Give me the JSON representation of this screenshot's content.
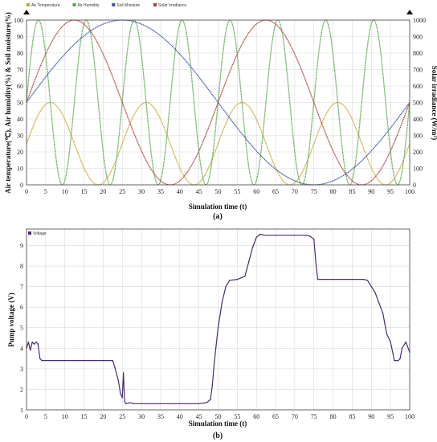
{
  "charts": [
    {
      "id": "a",
      "type": "line",
      "caption": "(a)",
      "xlabel": "Simulation time (t)",
      "ylabel_left": "Air temperature(℃), Air humidity(%) & Soil moisture(%)",
      "ylabel_right": "Solar irradiance (W/m²)",
      "xlim": [
        0,
        100
      ],
      "ylim_left": [
        0,
        100
      ],
      "ylim_right": [
        0,
        1000
      ],
      "xticks": [
        "0",
        "5",
        "10",
        "15",
        "20",
        "25",
        "30",
        "35",
        "40",
        "45",
        "50",
        "55",
        "60",
        "65",
        "70",
        "75",
        "80",
        "85",
        "90",
        "95",
        "100"
      ],
      "yticks_left": [
        "0",
        "10",
        "20",
        "30",
        "40",
        "50",
        "60",
        "70",
        "80",
        "90",
        "100"
      ],
      "yticks_right": [
        "0",
        "100",
        "200",
        "300",
        "400",
        "500",
        "600",
        "700",
        "800",
        "900",
        "1000"
      ],
      "grid": true,
      "legend_position": "top-left",
      "series": [
        {
          "name": "Air Temperature",
          "color": "#c8a52a",
          "axis": "left",
          "model": "sine",
          "amplitude": 25,
          "offset": 25,
          "period": 25,
          "peak_at": 6.25
        },
        {
          "name": "Air Humidity",
          "color": "#57a84a",
          "axis": "left",
          "model": "sine",
          "amplitude": 50,
          "offset": 50,
          "period": 12.5,
          "peak_at": 3.1
        },
        {
          "name": "Soil Moisture",
          "color": "#3a57a3",
          "axis": "left",
          "model": "sine",
          "amplitude": 50,
          "offset": 50,
          "period": 100,
          "peak_at": 25
        },
        {
          "name": "Solar Irradiance",
          "color": "#a8423c",
          "axis": "right",
          "model": "sine",
          "amplitude": 500,
          "offset": 500,
          "period": 50,
          "peak_at": 12.5
        }
      ]
    },
    {
      "id": "b",
      "type": "line",
      "caption": "(b)",
      "xlabel": "Simulation time (t)",
      "ylabel": "Pump voltage (V)",
      "xlim": [
        0,
        100
      ],
      "ylim": [
        1,
        9.8
      ],
      "xticks": [
        "0",
        "5",
        "10",
        "15",
        "20",
        "25",
        "30",
        "35",
        "40",
        "45",
        "50",
        "55",
        "60",
        "65",
        "70",
        "75",
        "80",
        "85",
        "90",
        "95",
        "100"
      ],
      "yticks": [
        "1",
        "2",
        "3",
        "4",
        "5",
        "6",
        "7",
        "8",
        "9"
      ],
      "grid": true,
      "legend_position": "top-left",
      "series": [
        {
          "name": "Voltage",
          "color": "#4b2c6e",
          "x": [
            0,
            0.5,
            1,
            1.5,
            2,
            2.5,
            3,
            3.5,
            4,
            10,
            15,
            20,
            22.5,
            23,
            24,
            24.5,
            25,
            25.3,
            25.6,
            26,
            27,
            28,
            30,
            35,
            40,
            45,
            47,
            48,
            48.5,
            49,
            50,
            51,
            52,
            53,
            55,
            57,
            58,
            59,
            60,
            61,
            62,
            65,
            70,
            73,
            74,
            75,
            75.5,
            76,
            77,
            80,
            85,
            88,
            89,
            90,
            91,
            92,
            93,
            93.5,
            94,
            95,
            96,
            97,
            97.5,
            98,
            99,
            100
          ],
          "y": [
            4.0,
            4.3,
            3.9,
            4.3,
            4.2,
            4.3,
            4.2,
            3.5,
            3.4,
            3.4,
            3.4,
            3.4,
            3.4,
            3.1,
            2.4,
            1.8,
            1.6,
            2.8,
            1.4,
            1.3,
            1.35,
            1.3,
            1.3,
            1.3,
            1.3,
            1.3,
            1.35,
            1.5,
            2.2,
            3.3,
            5.0,
            6.2,
            7.0,
            7.3,
            7.35,
            7.5,
            8.2,
            8.9,
            9.4,
            9.55,
            9.5,
            9.5,
            9.5,
            9.5,
            9.45,
            9.3,
            8.2,
            7.35,
            7.35,
            7.35,
            7.35,
            7.35,
            7.3,
            7.0,
            6.7,
            6.2,
            5.7,
            5.2,
            4.7,
            4.3,
            3.4,
            3.4,
            3.5,
            4.0,
            4.3,
            3.8
          ]
        }
      ]
    }
  ]
}
